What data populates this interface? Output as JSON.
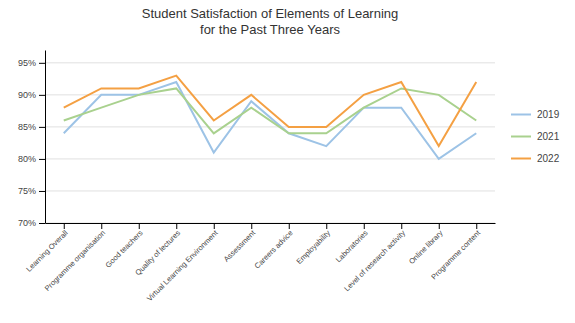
{
  "chart_data": {
    "type": "line",
    "title": "Student Satisfaction of Elements of Learning\nfor the Past Three Years",
    "categories": [
      "Learning Overall",
      "Programme organisation",
      "Good teachers",
      "Quality of lectures",
      "Virtual Learning Environment",
      "Assessment",
      "Careers advice",
      "Employability",
      "Laboratories",
      "Level of research activity",
      "Online library",
      "Programme content"
    ],
    "series": [
      {
        "name": "2019",
        "color": "#9dc3e6",
        "values": [
          84,
          90,
          90,
          92,
          81,
          89,
          84,
          82,
          88,
          88,
          80,
          84
        ]
      },
      {
        "name": "2021",
        "color": "#a9d18e",
        "values": [
          86,
          88,
          90,
          91,
          84,
          88,
          84,
          84,
          88,
          91,
          90,
          86
        ]
      },
      {
        "name": "2022",
        "color": "#f4a043",
        "values": [
          88,
          91,
          91,
          93,
          86,
          90,
          85,
          85,
          90,
          92,
          82,
          92
        ]
      }
    ],
    "ylim": [
      70,
      97
    ],
    "yticks": [
      {
        "value": 70,
        "label": "70%"
      },
      {
        "value": 75,
        "label": "75%"
      },
      {
        "value": 80,
        "label": "80%"
      },
      {
        "value": 85,
        "label": "85%"
      },
      {
        "value": 90,
        "label": "90%"
      },
      {
        "value": 95,
        "label": "95%"
      }
    ],
    "grid": true,
    "legend": "right"
  }
}
